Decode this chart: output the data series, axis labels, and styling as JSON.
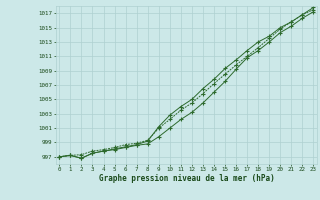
{
  "x": [
    0,
    1,
    2,
    3,
    4,
    5,
    6,
    7,
    8,
    9,
    10,
    11,
    12,
    13,
    14,
    15,
    16,
    17,
    18,
    19,
    20,
    21,
    22,
    23
  ],
  "line1": [
    997.0,
    997.2,
    996.8,
    997.5,
    997.8,
    998.0,
    998.3,
    998.6,
    998.8,
    999.8,
    1001.0,
    1002.2,
    1003.2,
    1004.5,
    1006.0,
    1007.5,
    1009.2,
    1010.8,
    1011.8,
    1013.0,
    1014.3,
    1015.2,
    1016.3,
    1017.2
  ],
  "line2": [
    997.0,
    997.2,
    996.8,
    997.5,
    997.8,
    998.1,
    998.4,
    998.7,
    999.2,
    1001.2,
    1002.8,
    1004.0,
    1005.0,
    1006.5,
    1007.8,
    1009.3,
    1010.5,
    1011.8,
    1013.0,
    1013.8,
    1015.0,
    1015.8,
    1016.8,
    1017.8
  ],
  "line3": [
    997.0,
    997.2,
    997.3,
    997.8,
    998.0,
    998.3,
    998.7,
    998.9,
    999.3,
    1001.0,
    1002.2,
    1003.5,
    1004.5,
    1005.8,
    1007.2,
    1008.5,
    1009.8,
    1011.0,
    1012.2,
    1013.5,
    1014.8,
    1015.8,
    1016.8,
    1017.5
  ],
  "ylim": [
    996.0,
    1018.0
  ],
  "yticks": [
    997,
    999,
    1001,
    1003,
    1005,
    1007,
    1009,
    1011,
    1013,
    1015,
    1017
  ],
  "xticks": [
    0,
    1,
    2,
    3,
    4,
    5,
    6,
    7,
    8,
    9,
    10,
    11,
    12,
    13,
    14,
    15,
    16,
    17,
    18,
    19,
    20,
    21,
    22,
    23
  ],
  "xlabel": "Graphe pression niveau de la mer (hPa)",
  "line_color": "#2d6a2d",
  "bg_color": "#cce8e8",
  "grid_color": "#afd0d0",
  "text_color": "#1a4a1a"
}
